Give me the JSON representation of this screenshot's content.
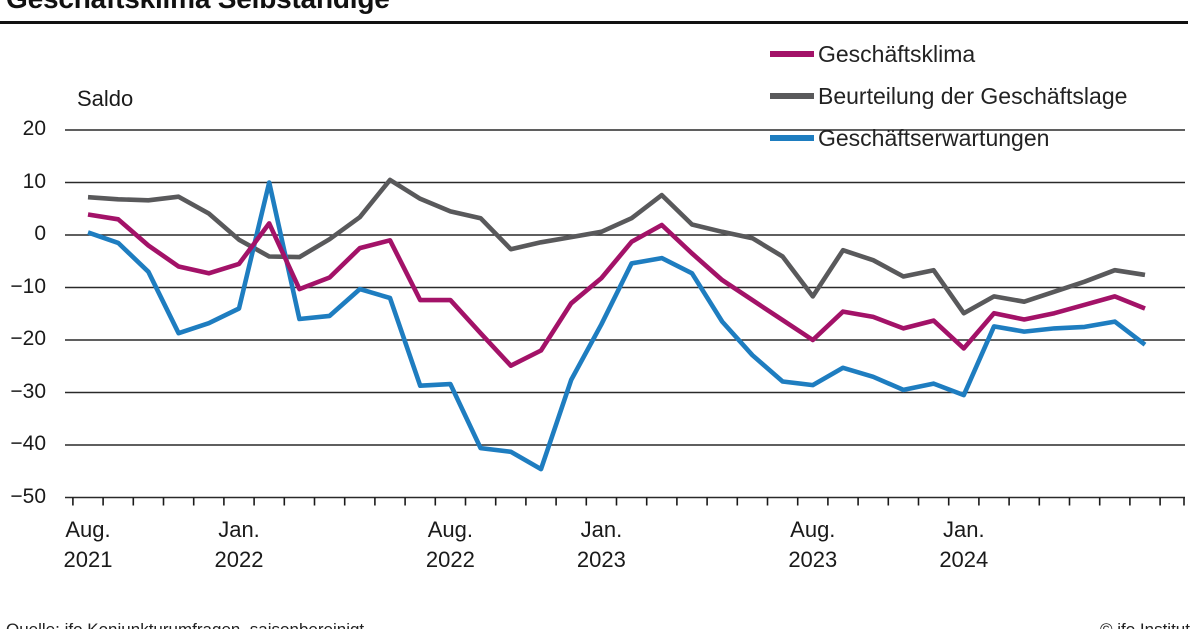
{
  "header": {
    "title": "Geschäftsklima Selbständige"
  },
  "legend": [
    {
      "label": "Geschäftsklima",
      "color": "#A31268"
    },
    {
      "label": "Beurteilung der Geschäftslage",
      "color": "#59595B"
    },
    {
      "label": "Geschäftserwartungen",
      "color": "#1E7DC0"
    }
  ],
  "axis": {
    "y_unit_label": "Saldo",
    "y_ticks": [
      20,
      10,
      0,
      -10,
      -20,
      -30,
      -40,
      -50
    ],
    "x_labels": [
      {
        "month": "Aug.",
        "year": "2021",
        "index": 0
      },
      {
        "month": "Jan.",
        "year": "2022",
        "index": 5
      },
      {
        "month": "Aug.",
        "year": "2022",
        "index": 12
      },
      {
        "month": "Jan.",
        "year": "2023",
        "index": 17
      },
      {
        "month": "Aug.",
        "year": "2023",
        "index": 24
      },
      {
        "month": "Jan.",
        "year": "2024",
        "index": 29
      }
    ]
  },
  "footer": {
    "source": "Quelle: ifo Konjunkturumfragen, saisonbereinigt.",
    "copyright": "© ifo Institut"
  },
  "chart_data": {
    "type": "line",
    "title": "Geschäftsklima Selbständige",
    "ylabel": "Saldo",
    "ylim": [
      -50,
      20
    ],
    "grid": true,
    "legend_position": "top-right",
    "x": [
      "Aug. 2021",
      "Sep. 2021",
      "Okt. 2021",
      "Nov. 2021",
      "Dez. 2021",
      "Jan. 2022",
      "Feb. 2022",
      "März 2022",
      "Apr. 2022",
      "Mai 2022",
      "Juni 2022",
      "Juli 2022",
      "Aug. 2022",
      "Sep. 2022",
      "Okt. 2022",
      "Nov. 2022",
      "Dez. 2022",
      "Jan. 2023",
      "Feb. 2023",
      "März 2023",
      "Apr. 2023",
      "Mai 2023",
      "Juni 2023",
      "Juli 2023",
      "Aug. 2023",
      "Sep. 2023",
      "Okt. 2023",
      "Nov. 2023",
      "Dez. 2023",
      "Jan. 2024",
      "Feb. 2024",
      "März 2024",
      "Apr. 2024",
      "Mai 2024",
      "Juni 2024",
      "Juli 2024"
    ],
    "series": [
      {
        "name": "Geschäftsklima",
        "color": "#A31268",
        "values": [
          3.9,
          3.0,
          -2.0,
          -6.0,
          -7.3,
          -5.5,
          2.2,
          -10.3,
          -8.1,
          -2.5,
          -1.0,
          -12.4,
          -12.4,
          -18.7,
          -24.9,
          -22.0,
          -13.0,
          -8.2,
          -1.3,
          1.9,
          -3.5,
          -8.6,
          -12.4,
          -16.2,
          -20.0,
          -14.6,
          -15.6,
          -17.8,
          -16.3,
          -21.6,
          -14.9,
          -16.1,
          -14.9,
          -13.3,
          -11.7,
          -14.0
        ]
      },
      {
        "name": "Beurteilung der Geschäftslage",
        "color": "#59595B",
        "values": [
          7.2,
          6.8,
          6.6,
          7.3,
          4.1,
          -0.9,
          -4.1,
          -4.2,
          -0.8,
          3.4,
          10.5,
          6.9,
          4.5,
          3.2,
          -2.7,
          -1.4,
          -0.4,
          0.6,
          3.2,
          7.6,
          2.0,
          0.6,
          -0.6,
          -4.1,
          -11.7,
          -2.9,
          -4.8,
          -7.9,
          -6.7,
          -14.9,
          -11.7,
          -12.7,
          -10.8,
          -8.9,
          -6.7,
          -7.6
        ]
      },
      {
        "name": "Geschäftserwartungen",
        "color": "#1E7DC0",
        "values": [
          0.5,
          -1.5,
          -7.0,
          -18.7,
          -16.8,
          -14.0,
          10.0,
          -16.0,
          -15.4,
          -10.3,
          -12.0,
          -28.7,
          -28.4,
          -40.6,
          -41.3,
          -44.6,
          -27.6,
          -17.0,
          -5.4,
          -4.4,
          -7.3,
          -16.5,
          -22.9,
          -27.9,
          -28.6,
          -25.3,
          -27.0,
          -29.5,
          -28.3,
          -30.5,
          -17.4,
          -18.4,
          -17.8,
          -17.5,
          -16.5,
          -20.9
        ]
      }
    ]
  }
}
